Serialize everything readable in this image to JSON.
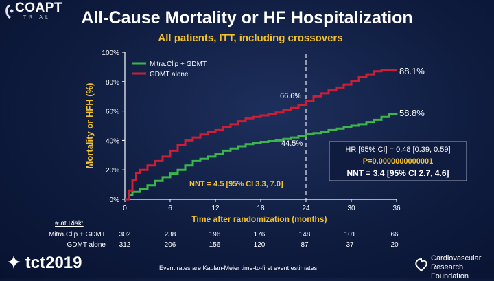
{
  "logo": {
    "name": "COAPT",
    "sub": "TRIAL"
  },
  "title": "All-Cause Mortality or HF Hospitalization",
  "subtitle": "All patients, ITT, including crossovers",
  "chart_data": {
    "type": "line",
    "title": "All-Cause Mortality or HF Hospitalization",
    "subtitle": "All patients, ITT, including crossovers",
    "xlabel": "Time after randomization (months)",
    "ylabel": "Mortality or HFH (%)",
    "xlim": [
      0,
      36
    ],
    "ylim": [
      0,
      100
    ],
    "x_ticks": [
      "0",
      "6",
      "12",
      "18",
      "24",
      "30",
      "36"
    ],
    "y_ticks": [
      "0%",
      "20%",
      "40%",
      "60%",
      "80%",
      "100%"
    ],
    "reference_line_x": 24,
    "series": [
      {
        "name": "Mitra.Clip + GDMT",
        "color": "#3cb54a",
        "points": [
          [
            0,
            0
          ],
          [
            0.5,
            3
          ],
          [
            1,
            5
          ],
          [
            2,
            7
          ],
          [
            3,
            9.5
          ],
          [
            4,
            12.5
          ],
          [
            5,
            15
          ],
          [
            6,
            17.5
          ],
          [
            7,
            20
          ],
          [
            8,
            23
          ],
          [
            9,
            26
          ],
          [
            10,
            27.5
          ],
          [
            11,
            29
          ],
          [
            12,
            31
          ],
          [
            13,
            33
          ],
          [
            14,
            34.5
          ],
          [
            15,
            36
          ],
          [
            16,
            37.5
          ],
          [
            17,
            38.5
          ],
          [
            18,
            39
          ],
          [
            19,
            39.5
          ],
          [
            20,
            40
          ],
          [
            21,
            41
          ],
          [
            22,
            42
          ],
          [
            23,
            43
          ],
          [
            24,
            44.5
          ],
          [
            25,
            45
          ],
          [
            26,
            46
          ],
          [
            27,
            47
          ],
          [
            28,
            48
          ],
          [
            29,
            49
          ],
          [
            30,
            50
          ],
          [
            31,
            51
          ],
          [
            32,
            52.5
          ],
          [
            33,
            54
          ],
          [
            34,
            56
          ],
          [
            35,
            58
          ],
          [
            36,
            58.8
          ]
        ],
        "end_label": "58.8%",
        "label_at_24": "44.5%"
      },
      {
        "name": "GDMT alone",
        "color": "#cc1f36",
        "points": [
          [
            0,
            0
          ],
          [
            0.5,
            6
          ],
          [
            1,
            13
          ],
          [
            1.5,
            18
          ],
          [
            2,
            20
          ],
          [
            3,
            23
          ],
          [
            4,
            26
          ],
          [
            5,
            29
          ],
          [
            6,
            33
          ],
          [
            7,
            37
          ],
          [
            8,
            40
          ],
          [
            9,
            42
          ],
          [
            10,
            44
          ],
          [
            11,
            46
          ],
          [
            12,
            47
          ],
          [
            13,
            49
          ],
          [
            14,
            51
          ],
          [
            15,
            53
          ],
          [
            16,
            55
          ],
          [
            17,
            56
          ],
          [
            18,
            57
          ],
          [
            19,
            58
          ],
          [
            20,
            59
          ],
          [
            21,
            60.5
          ],
          [
            22,
            62
          ],
          [
            23,
            64
          ],
          [
            24,
            66.6
          ],
          [
            25,
            70
          ],
          [
            26,
            72
          ],
          [
            27,
            74
          ],
          [
            28,
            76
          ],
          [
            29,
            78
          ],
          [
            30,
            80.5
          ],
          [
            31,
            83
          ],
          [
            32,
            85
          ],
          [
            33,
            87
          ],
          [
            34,
            88
          ],
          [
            35,
            88.1
          ],
          [
            36,
            88.1
          ]
        ],
        "end_label": "88.1%",
        "label_at_24": "66.6%"
      }
    ],
    "annotations": {
      "nnt_24": "NNT = 4.5 [95% CI 3.3, 7.0]",
      "hr": "HR [95% CI] = 0.48 [0.39, 0.59]",
      "p": "P=0.0000000000001",
      "nnt_36": "NNT = 3.4 [95% CI 2.7, 4.6]"
    }
  },
  "at_risk": {
    "title": "# at Risk:",
    "rows": [
      {
        "label": "Mitra.Clip + GDMT",
        "values": [
          "302",
          "238",
          "196",
          "176",
          "148",
          "101",
          "66"
        ]
      },
      {
        "label": "GDMT alone",
        "values": [
          "312",
          "206",
          "156",
          "120",
          "87",
          "37",
          "20"
        ]
      }
    ]
  },
  "footer": {
    "tct": "tct2019",
    "crf_line1": "Cardiovascular",
    "crf_line2": "Research Foundation",
    "note": "Event rates are Kaplan-Meier time-to-first event estimates"
  }
}
